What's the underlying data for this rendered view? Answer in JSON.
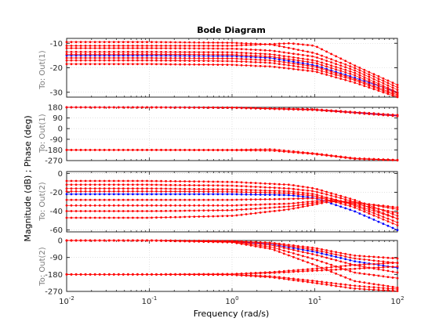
{
  "chart_data": {
    "type": "line",
    "title": "Bode Diagram",
    "xlabel": "Frequency  (rad/s)",
    "ylabel": "Magnitude (dB) ; Phase (deg)",
    "x_scale": "log",
    "xlim": [
      0.01,
      100
    ],
    "x_ticks": [
      "10^-2",
      "10^-1",
      "10^0",
      "10^1",
      "10^2"
    ],
    "grid": true,
    "colors": {
      "primary": "#0000ff",
      "uncertain": "#ff0000"
    },
    "panels": [
      {
        "row_label": "To: Out(1)",
        "kind": "magnitude",
        "ylim": [
          -32,
          -8
        ],
        "y_ticks": [
          -10,
          -20,
          -30
        ],
        "series": [
          {
            "color": "#0000ff",
            "x": [
              0.01,
              0.1,
              1,
              3,
              10,
              30,
              100
            ],
            "values": [
              -15,
              -15,
              -15.2,
              -16,
              -19,
              -24,
              -30
            ]
          },
          {
            "color": "#ff0000",
            "x": [
              0.01,
              0.1,
              1,
              3,
              10,
              30,
              100
            ],
            "values": [
              -9.5,
              -9.5,
              -9.8,
              -10.5,
              -14,
              -20,
              -28
            ]
          },
          {
            "color": "#ff0000",
            "x": [
              0.01,
              0.1,
              1,
              5,
              10,
              30,
              100
            ],
            "values": [
              -11,
              -11,
              -11,
              -10,
              -11,
              -19,
              -27
            ]
          },
          {
            "color": "#ff0000",
            "x": [
              0.01,
              0.1,
              1,
              3,
              10,
              30,
              100
            ],
            "values": [
              -12,
              -12,
              -12.2,
              -13,
              -15.5,
              -21,
              -29
            ]
          },
          {
            "color": "#ff0000",
            "x": [
              0.01,
              0.1,
              1,
              3,
              10,
              30,
              100
            ],
            "values": [
              -13.5,
              -13.5,
              -13.7,
              -14.5,
              -17,
              -22,
              -30
            ]
          },
          {
            "color": "#ff0000",
            "x": [
              0.01,
              0.1,
              1,
              3,
              10,
              30,
              100
            ],
            "values": [
              -14.5,
              -14.5,
              -14.7,
              -15.5,
              -18,
              -23,
              -30.5
            ]
          },
          {
            "color": "#ff0000",
            "x": [
              0.01,
              0.1,
              1,
              3,
              10,
              30,
              100
            ],
            "values": [
              -16,
              -16,
              -16.2,
              -17,
              -19.5,
              -24.5,
              -31
            ]
          },
          {
            "color": "#ff0000",
            "x": [
              0.01,
              0.1,
              1,
              3,
              10,
              30,
              100
            ],
            "values": [
              -17,
              -17,
              -17.3,
              -18,
              -20.5,
              -25,
              -31.5
            ]
          },
          {
            "color": "#ff0000",
            "x": [
              0.01,
              0.1,
              1,
              3,
              10,
              30,
              100
            ],
            "values": [
              -18.5,
              -18.5,
              -18.8,
              -19.5,
              -21.5,
              -26,
              -32
            ]
          }
        ]
      },
      {
        "row_label": "To: Out(1)",
        "kind": "phase",
        "ylim": [
          -270,
          180
        ],
        "y_ticks": [
          180,
          90,
          0,
          -90,
          -180,
          -270
        ],
        "series": [
          {
            "color": "#0000ff",
            "x": [
              0.01,
              0.1,
              1,
              10,
              100
            ],
            "values": [
              180,
              180,
              177,
              160,
              110
            ]
          },
          {
            "color": "#ff0000",
            "x": [
              0.01,
              0.1,
              1,
              10,
              100
            ],
            "values": [
              180,
              180,
              178,
              163,
              115
            ]
          },
          {
            "color": "#ff0000",
            "x": [
              0.01,
              0.1,
              1,
              10,
              100
            ],
            "values": [
              180,
              179,
              176,
              157,
              105
            ]
          },
          {
            "color": "#ff0000",
            "x": [
              0.01,
              0.1,
              1,
              3,
              10,
              30,
              100
            ],
            "values": [
              -180,
              -180,
              -180,
              -175,
              -210,
              -250,
              -265
            ]
          },
          {
            "color": "#ff0000",
            "x": [
              0.01,
              0.1,
              1,
              3,
              10,
              30,
              100
            ],
            "values": [
              -180,
              -180,
              -182,
              -185,
              -215,
              -255,
              -268
            ]
          }
        ]
      },
      {
        "row_label": "To: Out(2)",
        "kind": "magnitude",
        "ylim": [
          -62,
          2
        ],
        "y_ticks": [
          0,
          -20,
          -40,
          -60
        ],
        "series": [
          {
            "color": "#0000ff",
            "x": [
              0.01,
              0.1,
              1,
              5,
              10,
              30,
              100
            ],
            "values": [
              -22,
              -22,
              -22,
              -23,
              -26,
              -40,
              -60
            ]
          },
          {
            "color": "#ff0000",
            "x": [
              0.01,
              0.1,
              1,
              5,
              10,
              30,
              100
            ],
            "values": [
              -8,
              -8,
              -9,
              -12,
              -16,
              -28,
              -45
            ]
          },
          {
            "color": "#ff0000",
            "x": [
              0.01,
              0.1,
              1,
              5,
              10,
              30,
              100
            ],
            "values": [
              -12,
              -12,
              -13,
              -16,
              -19,
              -30,
              -48
            ]
          },
          {
            "color": "#ff0000",
            "x": [
              0.01,
              0.1,
              1,
              5,
              10,
              30,
              100
            ],
            "values": [
              -16,
              -16,
              -17,
              -19,
              -22,
              -34,
              -52
            ]
          },
          {
            "color": "#ff0000",
            "x": [
              0.01,
              0.1,
              1,
              5,
              10,
              30,
              100
            ],
            "values": [
              -19,
              -19,
              -19.5,
              -21,
              -24,
              -36,
              -55
            ]
          },
          {
            "color": "#ff0000",
            "x": [
              0.01,
              0.1,
              1,
              5,
              15,
              30,
              100
            ],
            "values": [
              -28,
              -28,
              -28,
              -27,
              -26,
              -33,
              -48
            ]
          },
          {
            "color": "#ff0000",
            "x": [
              0.01,
              0.1,
              1,
              5,
              15,
              30,
              100
            ],
            "values": [
              -34,
              -34,
              -34,
              -32,
              -28,
              -32,
              -42
            ]
          },
          {
            "color": "#ff0000",
            "x": [
              0.01,
              0.1,
              1,
              5,
              15,
              30,
              100
            ],
            "values": [
              -40,
              -40,
              -39,
              -35,
              -29,
              -30,
              -38
            ]
          },
          {
            "color": "#ff0000",
            "x": [
              0.01,
              0.1,
              1,
              5,
              15,
              30,
              100
            ],
            "values": [
              -47,
              -47,
              -45,
              -38,
              -30,
              -31,
              -36
            ]
          }
        ]
      },
      {
        "row_label": "To: Out(2)",
        "kind": "phase",
        "ylim": [
          -270,
          0
        ],
        "y_ticks": [
          0,
          -90,
          -180,
          -270
        ],
        "series": [
          {
            "color": "#0000ff",
            "x": [
              0.01,
              0.1,
              1,
              3,
              10,
              30,
              100
            ],
            "values": [
              0,
              0,
              -5,
              -20,
              -60,
              -110,
              -145
            ]
          },
          {
            "color": "#ff0000",
            "x": [
              0.01,
              0.1,
              1,
              3,
              10,
              30,
              100
            ],
            "values": [
              0,
              0,
              -3,
              -12,
              -40,
              -80,
              -95
            ]
          },
          {
            "color": "#ff0000",
            "x": [
              0.01,
              0.1,
              1,
              3,
              10,
              30,
              100
            ],
            "values": [
              0,
              0,
              -4,
              -16,
              -50,
              -95,
              -120
            ]
          },
          {
            "color": "#ff0000",
            "x": [
              0.01,
              0.1,
              1,
              3,
              10,
              30,
              100
            ],
            "values": [
              0,
              0,
              -6,
              -25,
              -75,
              -130,
              -170
            ]
          },
          {
            "color": "#ff0000",
            "x": [
              0.01,
              0.1,
              1,
              3,
              10,
              30,
              100
            ],
            "values": [
              0,
              0,
              -8,
              -35,
              -100,
              -170,
              -200
            ]
          },
          {
            "color": "#ff0000",
            "x": [
              0.01,
              0.1,
              1,
              3,
              10,
              30,
              100
            ],
            "values": [
              0,
              0,
              -10,
              -45,
              -130,
              -215,
              -250
            ]
          },
          {
            "color": "#ff0000",
            "x": [
              0.01,
              0.1,
              1,
              3,
              10,
              30,
              100
            ],
            "values": [
              -180,
              -180,
              -178,
              -172,
              -160,
              -150,
              -138
            ]
          },
          {
            "color": "#ff0000",
            "x": [
              0.01,
              0.1,
              1,
              3,
              10,
              30,
              100
            ],
            "values": [
              -180,
              -180,
              -178,
              -168,
              -150,
              -130,
              -118
            ]
          },
          {
            "color": "#ff0000",
            "x": [
              0.01,
              0.1,
              1,
              3,
              10,
              30,
              100
            ],
            "values": [
              -180,
              -180,
              -181,
              -190,
              -215,
              -240,
              -258
            ]
          },
          {
            "color": "#ff0000",
            "x": [
              0.01,
              0.1,
              1,
              3,
              10,
              30,
              100
            ],
            "values": [
              -180,
              -180,
              -182,
              -195,
              -225,
              -255,
              -268
            ]
          }
        ]
      }
    ]
  }
}
